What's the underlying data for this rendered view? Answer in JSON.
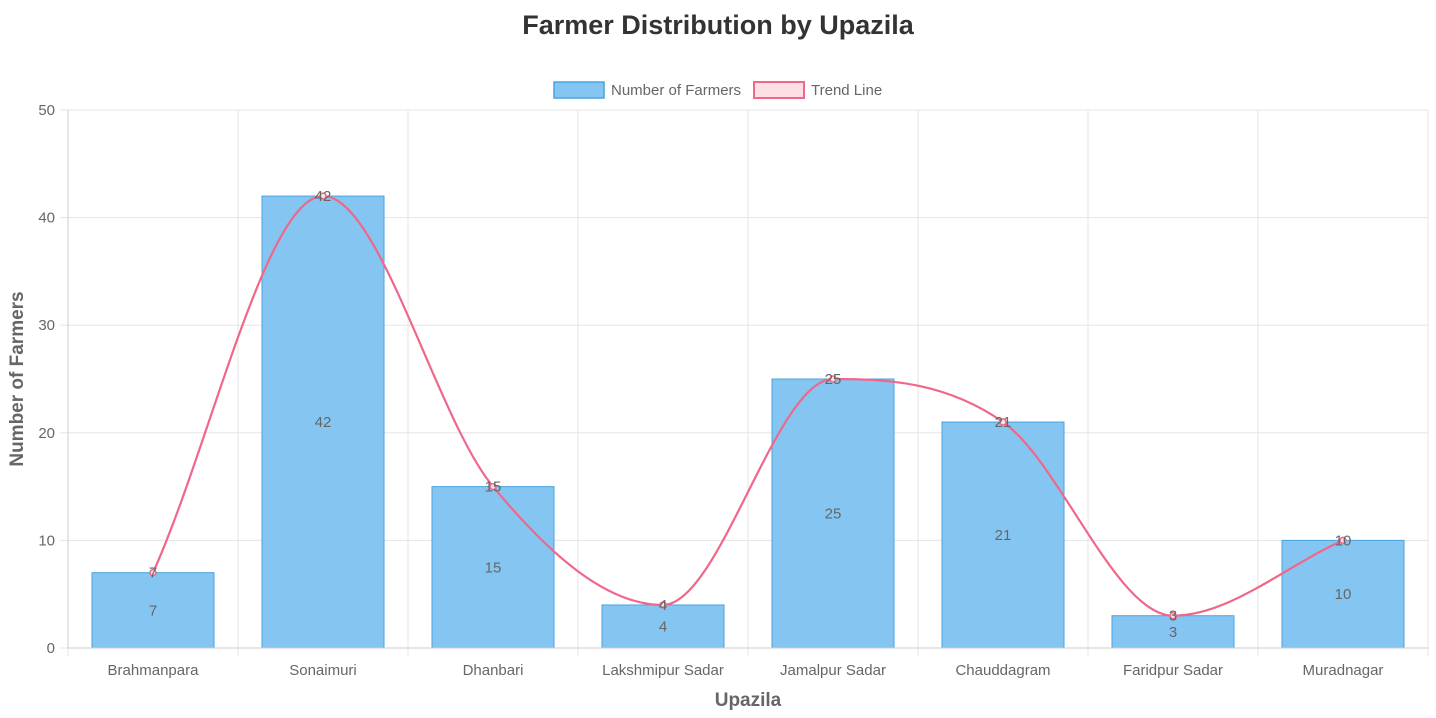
{
  "chart_data": {
    "type": "bar",
    "title": "Farmer Distribution by Upazila",
    "xlabel": "Upazila",
    "ylabel": "Number of Farmers",
    "categories": [
      "Brahmanpara",
      "Sonaimuri",
      "Dhanbari",
      "Lakshmipur Sadar",
      "Jamalpur Sadar",
      "Chauddagram",
      "Faridpur Sadar",
      "Muradnagar"
    ],
    "series": [
      {
        "name": "Number of Farmers",
        "type": "bar",
        "values": [
          7,
          42,
          15,
          4,
          25,
          21,
          3,
          10
        ]
      },
      {
        "name": "Trend Line",
        "type": "line",
        "values": [
          7,
          42,
          15,
          4,
          25,
          21,
          3,
          10
        ]
      }
    ],
    "ylim": [
      0,
      50
    ],
    "yticks": [
      0,
      10,
      20,
      30,
      40,
      50
    ],
    "grid": true,
    "legend_position": "top",
    "colors": {
      "bar_fill": "#85c5f2",
      "bar_border": "#4aa3df",
      "line": "#f06789",
      "line_legend_fill": "#fde0e6",
      "grid": "#e5e5e5",
      "text": "#666666"
    }
  }
}
